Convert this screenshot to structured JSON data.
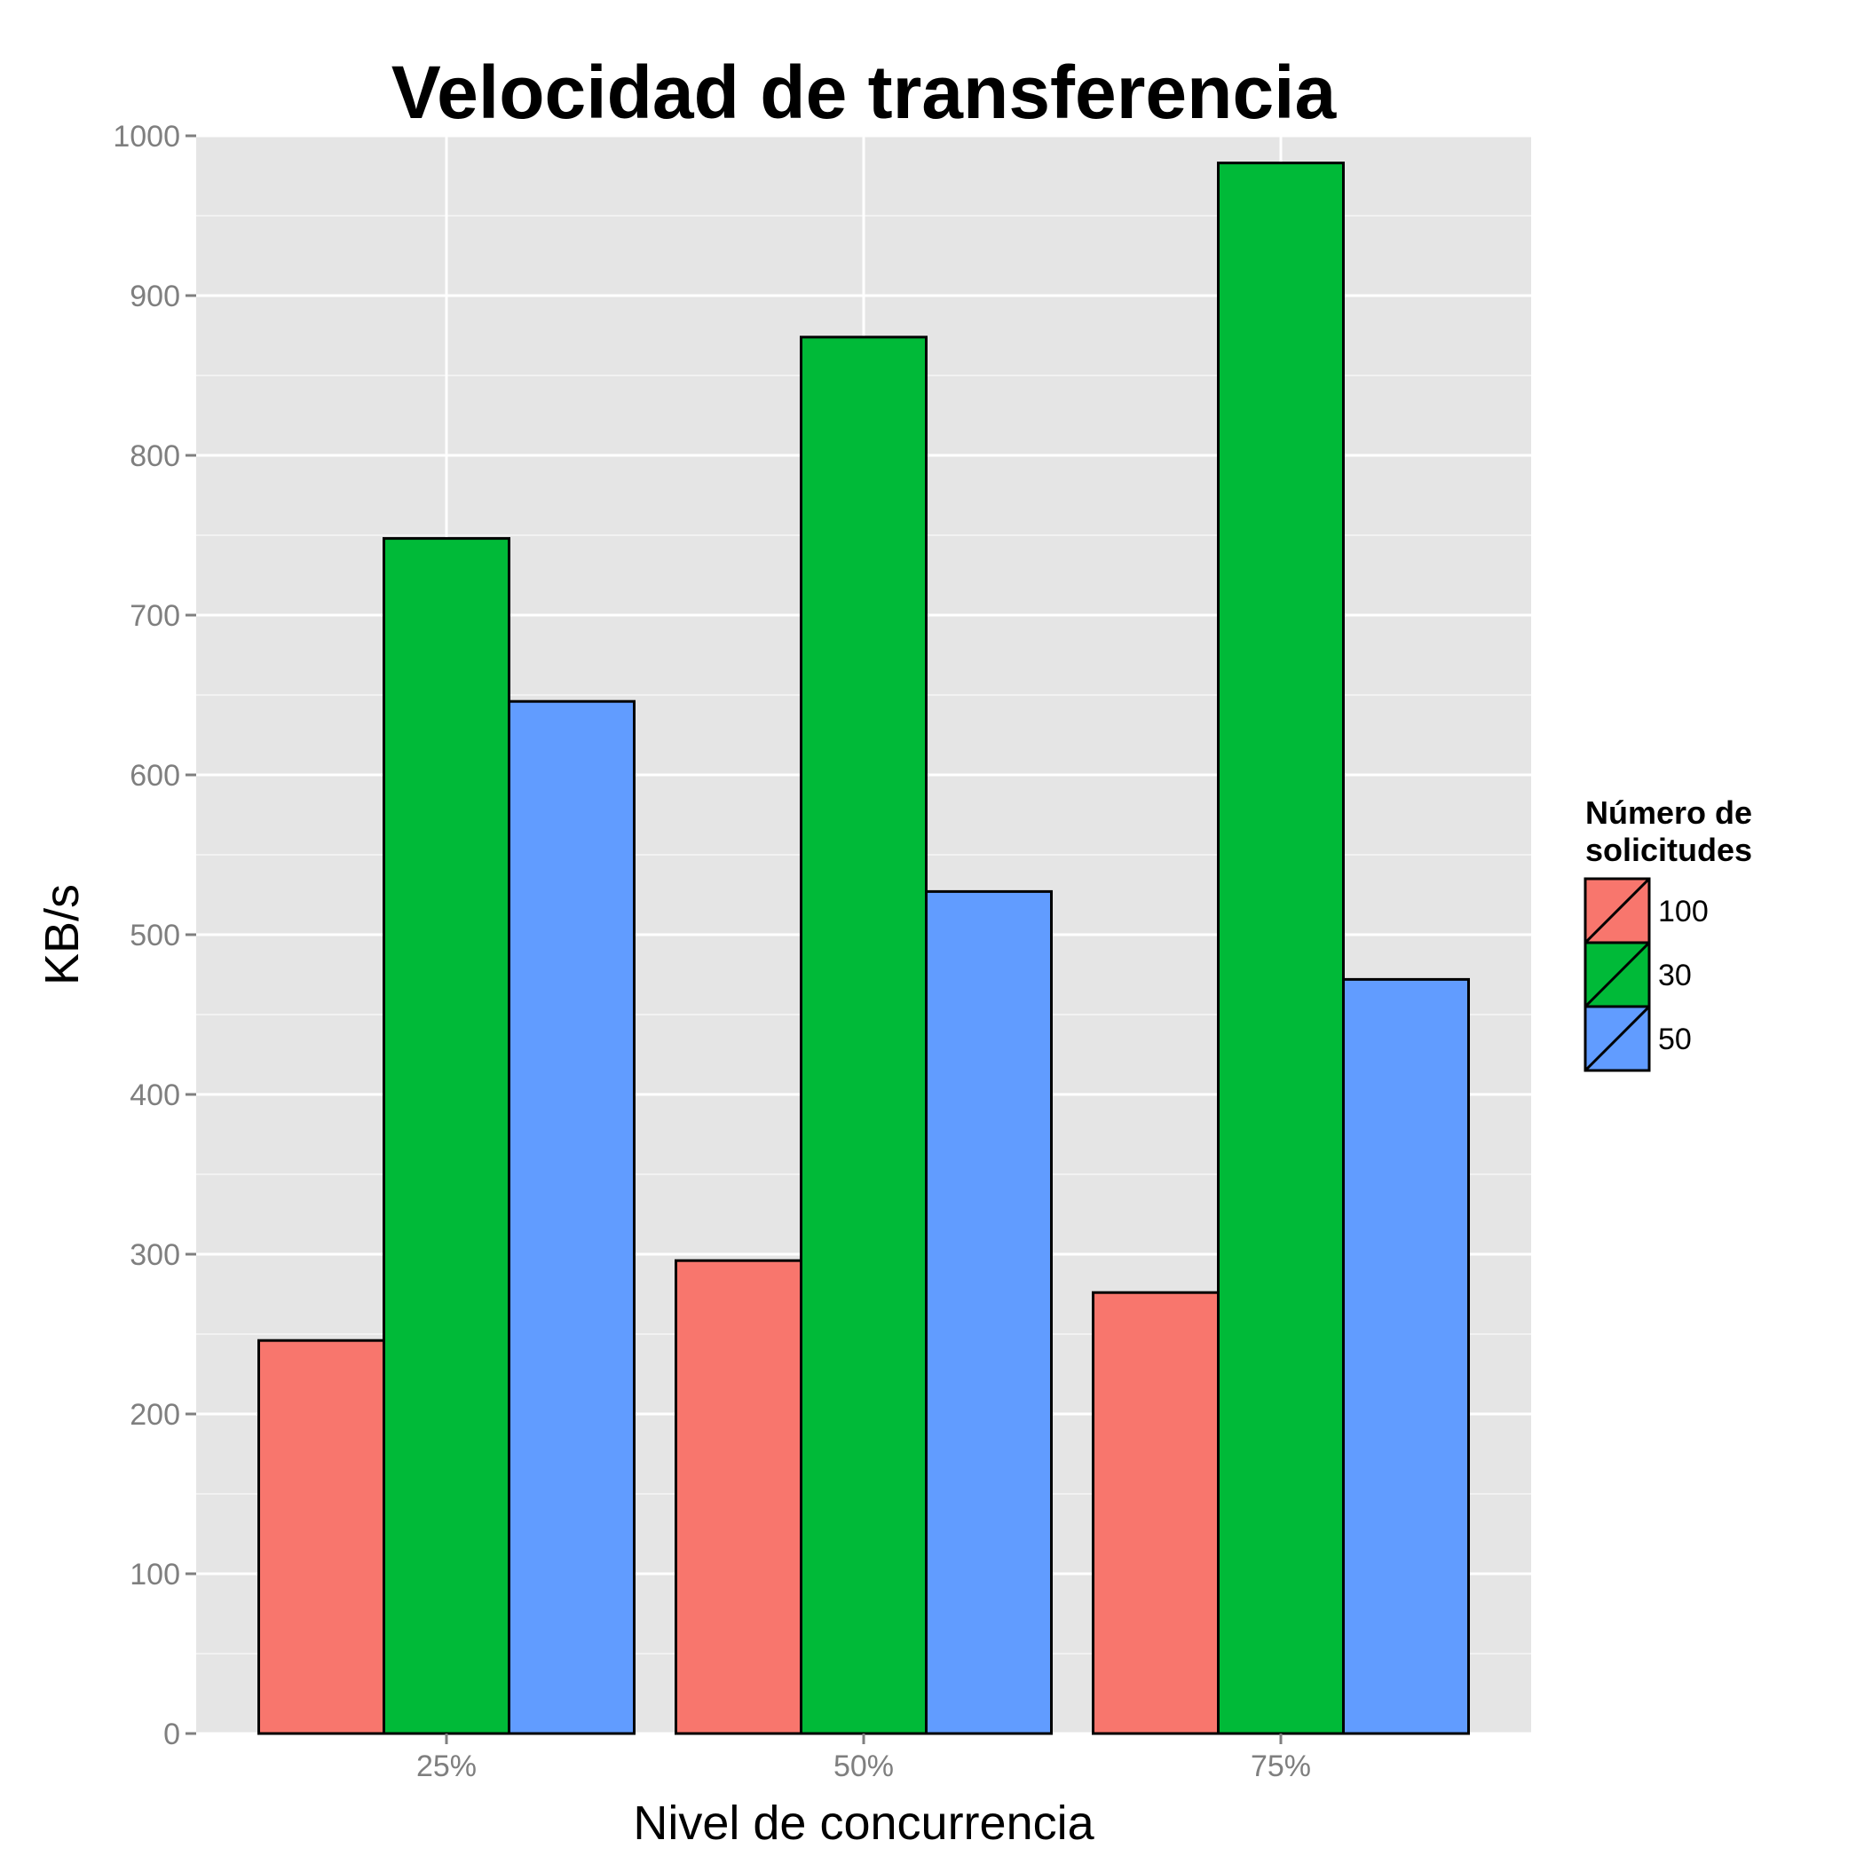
{
  "chart_data": {
    "type": "bar",
    "title": "Velocidad de transferencia",
    "xlabel": "Nivel de concurrencia",
    "ylabel": "KB/s",
    "categories": [
      "25%",
      "50%",
      "75%"
    ],
    "series": [
      {
        "name": "100",
        "color": "#F8766D",
        "values": [
          246,
          296,
          276
        ]
      },
      {
        "name": "30",
        "color": "#00BA38",
        "values": [
          748,
          874,
          983
        ]
      },
      {
        "name": "50",
        "color": "#619CFF",
        "values": [
          646,
          527,
          472
        ]
      }
    ],
    "ylim": [
      0,
      1000
    ],
    "yticks": [
      0,
      100,
      200,
      300,
      400,
      500,
      600,
      700,
      800,
      900,
      1000
    ],
    "ytick_labels": [
      "0",
      "100",
      "200",
      "300",
      "400",
      "500",
      "600",
      "700",
      "800",
      "900",
      "1000"
    ],
    "grid": true,
    "legend": {
      "title_lines": [
        "Número de",
        "solicitudes"
      ],
      "position": "right"
    }
  }
}
